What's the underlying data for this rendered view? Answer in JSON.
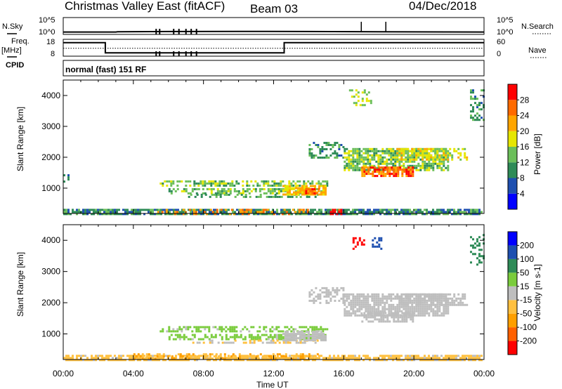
{
  "header": {
    "station": "Christmas Valley East (fitACF)",
    "beam": "Beam 03",
    "date": "04/Dec/2018"
  },
  "left_labels": {
    "nsky": "N.Sky",
    "freq_line1": "Freq.",
    "freq_line2": "[MHz]",
    "cpid": "CPID"
  },
  "right_labels": {
    "nsearch": "N.Search",
    "nave": "Nave"
  },
  "noise_axis": {
    "top": "10^5",
    "bottom": "10^0"
  },
  "freq_axis": {
    "top": "18",
    "bottom": "8"
  },
  "nave_axis": {
    "top": "60",
    "bottom": "0"
  },
  "program": "normal (fast) 151 RF",
  "time_axis": {
    "label": "Time UT",
    "ticks": [
      "00:00",
      "04:00",
      "08:00",
      "12:00",
      "16:00",
      "20:00",
      "00:00"
    ]
  },
  "colors": {
    "power_scale": [
      "#0000ff",
      "#1e4fb0",
      "#2e8b57",
      "#6bbf5a",
      "#e6e600",
      "#ffa500",
      "#ff6a00",
      "#ff0000"
    ],
    "velocity_scale": [
      "#ff0000",
      "#ff6000",
      "#ff9f00",
      "#ffc040",
      "#bebebe",
      "#7acc3c",
      "#2e8b57",
      "#1e4fb0",
      "#0000ff"
    ],
    "ground_scatter": "#bebebe"
  },
  "chart_data": [
    {
      "type": "line",
      "title": "N.Sky / N.Search noise",
      "x_range_hours": [
        0,
        24
      ],
      "yscale": "log",
      "ylim": [
        1,
        100000
      ],
      "series": [
        {
          "name": "N.Sky",
          "style": "solid",
          "points": [
            [
              0,
              5
            ],
            [
              3,
              5
            ],
            [
              3.1,
              6
            ],
            [
              6,
              7
            ],
            [
              10,
              8
            ],
            [
              14,
              7
            ],
            [
              18,
              6
            ],
            [
              24,
              5
            ]
          ]
        },
        {
          "name": "N.Search",
          "style": "dotted",
          "points": []
        }
      ],
      "spikes_hours": [
        17.0,
        18.4
      ]
    },
    {
      "type": "line",
      "title": "Freq. [MHz] / Nave",
      "x_range_hours": [
        0,
        24
      ],
      "ylim_freq": [
        8,
        18
      ],
      "ylim_nave": [
        0,
        60
      ],
      "series": [
        {
          "name": "Freq.",
          "style": "solid",
          "points": [
            [
              0,
              16
            ],
            [
              2.4,
              16
            ],
            [
              2.4,
              10
            ],
            [
              12.6,
              10
            ],
            [
              12.6,
              16
            ],
            [
              24,
              16
            ]
          ]
        },
        {
          "name": "Nave",
          "style": "dotted",
          "points": [
            [
              0,
              28
            ],
            [
              24,
              28
            ]
          ]
        }
      ],
      "dropouts_hours": [
        5.3,
        5.5,
        6.3,
        6.6,
        7.0,
        7.3,
        7.6
      ]
    },
    {
      "type": "heatmap",
      "title": "Power",
      "ylabel": "Slant Range [km]",
      "colorbar_label": "Power [dB]",
      "colorbar_ticks": [
        "4",
        "8",
        "12",
        "16",
        "20",
        "24",
        "28"
      ],
      "colorbar_range": [
        0,
        32
      ],
      "ylim": [
        180,
        4500
      ],
      "yticks": [
        1000,
        2000,
        3000,
        4000
      ],
      "x_range_hours": [
        0,
        24
      ],
      "regions": [
        {
          "t0": 0.0,
          "t1": 23.8,
          "r0": 180,
          "r1": 330,
          "value": 10,
          "density": 0.8
        },
        {
          "t0": 5.0,
          "t1": 14.0,
          "r0": 180,
          "r1": 330,
          "value": 24,
          "density": 0.25
        },
        {
          "t0": 15.2,
          "t1": 16.0,
          "r0": 180,
          "r1": 330,
          "value": 30,
          "density": 0.7
        },
        {
          "t0": 5.5,
          "t1": 15.0,
          "r0": 1100,
          "r1": 1250,
          "value": 14,
          "density": 0.55
        },
        {
          "t0": 6.0,
          "t1": 15.0,
          "r0": 850,
          "r1": 1000,
          "value": 14,
          "density": 0.55
        },
        {
          "t0": 7.0,
          "t1": 14.5,
          "r0": 700,
          "r1": 820,
          "value": 12,
          "density": 0.4
        },
        {
          "t0": 12.5,
          "t1": 15.0,
          "r0": 800,
          "r1": 1100,
          "value": 20,
          "density": 0.8
        },
        {
          "t0": 13.8,
          "t1": 14.6,
          "r0": 850,
          "r1": 1000,
          "value": 26,
          "density": 0.8
        },
        {
          "t0": 14.0,
          "t1": 16.0,
          "r0": 2000,
          "r1": 2500,
          "value": 10,
          "density": 0.45
        },
        {
          "t0": 16.0,
          "t1": 22.0,
          "r0": 1600,
          "r1": 2300,
          "value": 14,
          "density": 0.75
        },
        {
          "t0": 19.0,
          "t1": 23.0,
          "r0": 1900,
          "r1": 2300,
          "value": 18,
          "density": 0.6
        },
        {
          "t0": 17.0,
          "t1": 20.0,
          "r0": 1400,
          "r1": 1700,
          "value": 26,
          "density": 0.75
        },
        {
          "t0": 16.3,
          "t1": 17.6,
          "r0": 3700,
          "r1": 4200,
          "value": 16,
          "density": 0.3
        },
        {
          "t0": 23.2,
          "t1": 24.0,
          "r0": 3200,
          "r1": 4200,
          "value": 10,
          "density": 0.3
        },
        {
          "t0": 0.0,
          "t1": 0.3,
          "r0": 1200,
          "r1": 1450,
          "value": 8,
          "density": 0.5
        }
      ]
    },
    {
      "type": "heatmap",
      "title": "Velocity",
      "ylabel": "Slant Range [km]",
      "colorbar_label": "Velocity [m s-1]",
      "colorbar_ticks": [
        "-200",
        "-100",
        "-50",
        "-15",
        "15",
        "50",
        "100",
        "200"
      ],
      "colorbar_range": [
        -250,
        250
      ],
      "ylim": [
        180,
        4500
      ],
      "yticks": [
        1000,
        2000,
        3000,
        4000
      ],
      "x_range_hours": [
        0,
        24
      ],
      "regions": [
        {
          "t0": 0.0,
          "t1": 23.8,
          "r0": 180,
          "r1": 330,
          "value": -40,
          "density": 0.75
        },
        {
          "t0": 4.0,
          "t1": 14.5,
          "r0": 200,
          "r1": 380,
          "value": -80,
          "density": 0.5
        },
        {
          "t0": 5.5,
          "t1": 15.0,
          "r0": 1100,
          "r1": 1250,
          "value": 40,
          "density": 0.5
        },
        {
          "t0": 6.0,
          "t1": 15.0,
          "r0": 850,
          "r1": 1000,
          "value": 40,
          "density": 0.55
        },
        {
          "t0": 7.0,
          "t1": 14.5,
          "r0": 700,
          "r1": 820,
          "value": -25,
          "density": 0.45
        },
        {
          "t0": 12.5,
          "t1": 15.0,
          "r0": 800,
          "r1": 1100,
          "value": 0,
          "density": 0.8
        },
        {
          "t0": 14.0,
          "t1": 16.0,
          "r0": 2000,
          "r1": 2500,
          "value": 0,
          "density": 0.45
        },
        {
          "t0": 16.0,
          "t1": 22.0,
          "r0": 1600,
          "r1": 2300,
          "value": 0,
          "density": 0.8
        },
        {
          "t0": 19.0,
          "t1": 23.0,
          "r0": 1900,
          "r1": 2300,
          "value": 0,
          "density": 0.6
        },
        {
          "t0": 17.0,
          "t1": 20.0,
          "r0": 1400,
          "r1": 1700,
          "value": 0,
          "density": 0.75
        },
        {
          "t0": 16.5,
          "t1": 17.2,
          "r0": 3700,
          "r1": 4100,
          "value": -220,
          "density": 0.4
        },
        {
          "t0": 17.6,
          "t1": 18.2,
          "r0": 3700,
          "r1": 4100,
          "value": 180,
          "density": 0.4
        },
        {
          "t0": 23.2,
          "t1": 24.0,
          "r0": 3200,
          "r1": 4200,
          "value": 120,
          "density": 0.3
        }
      ]
    }
  ]
}
